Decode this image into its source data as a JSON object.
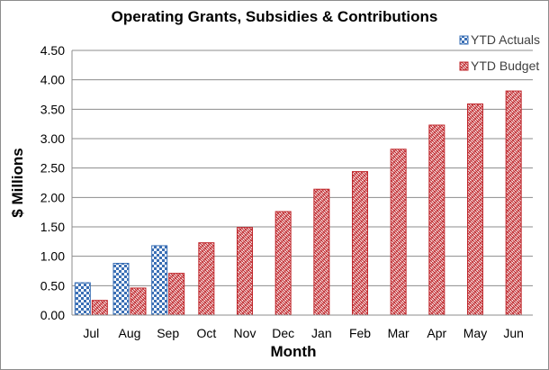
{
  "chart_data": {
    "type": "bar",
    "title": "Operating Grants, Subsidies & Contributions",
    "xlabel": "Month",
    "ylabel": "$ Millions",
    "categories": [
      "Jul",
      "Aug",
      "Sep",
      "Oct",
      "Nov",
      "Dec",
      "Jan",
      "Feb",
      "Mar",
      "Apr",
      "May",
      "Jun"
    ],
    "ylim": [
      0,
      4.5
    ],
    "yticks": [
      "0.00",
      "0.50",
      "1.00",
      "1.50",
      "2.00",
      "2.50",
      "3.00",
      "3.50",
      "4.00",
      "4.50"
    ],
    "grid": true,
    "legend_position": "top-right",
    "series": [
      {
        "name": "YTD Actuals",
        "color": "#3a6fb5",
        "pattern": "checkerboard",
        "values": [
          0.55,
          0.88,
          1.18,
          null,
          null,
          null,
          null,
          null,
          null,
          null,
          null,
          null
        ]
      },
      {
        "name": "YTD Budget",
        "color": "#c0282d",
        "pattern": "weave",
        "values": [
          0.25,
          0.46,
          0.71,
          1.23,
          1.49,
          1.76,
          2.14,
          2.44,
          2.82,
          3.23,
          3.59,
          3.81
        ]
      }
    ]
  }
}
